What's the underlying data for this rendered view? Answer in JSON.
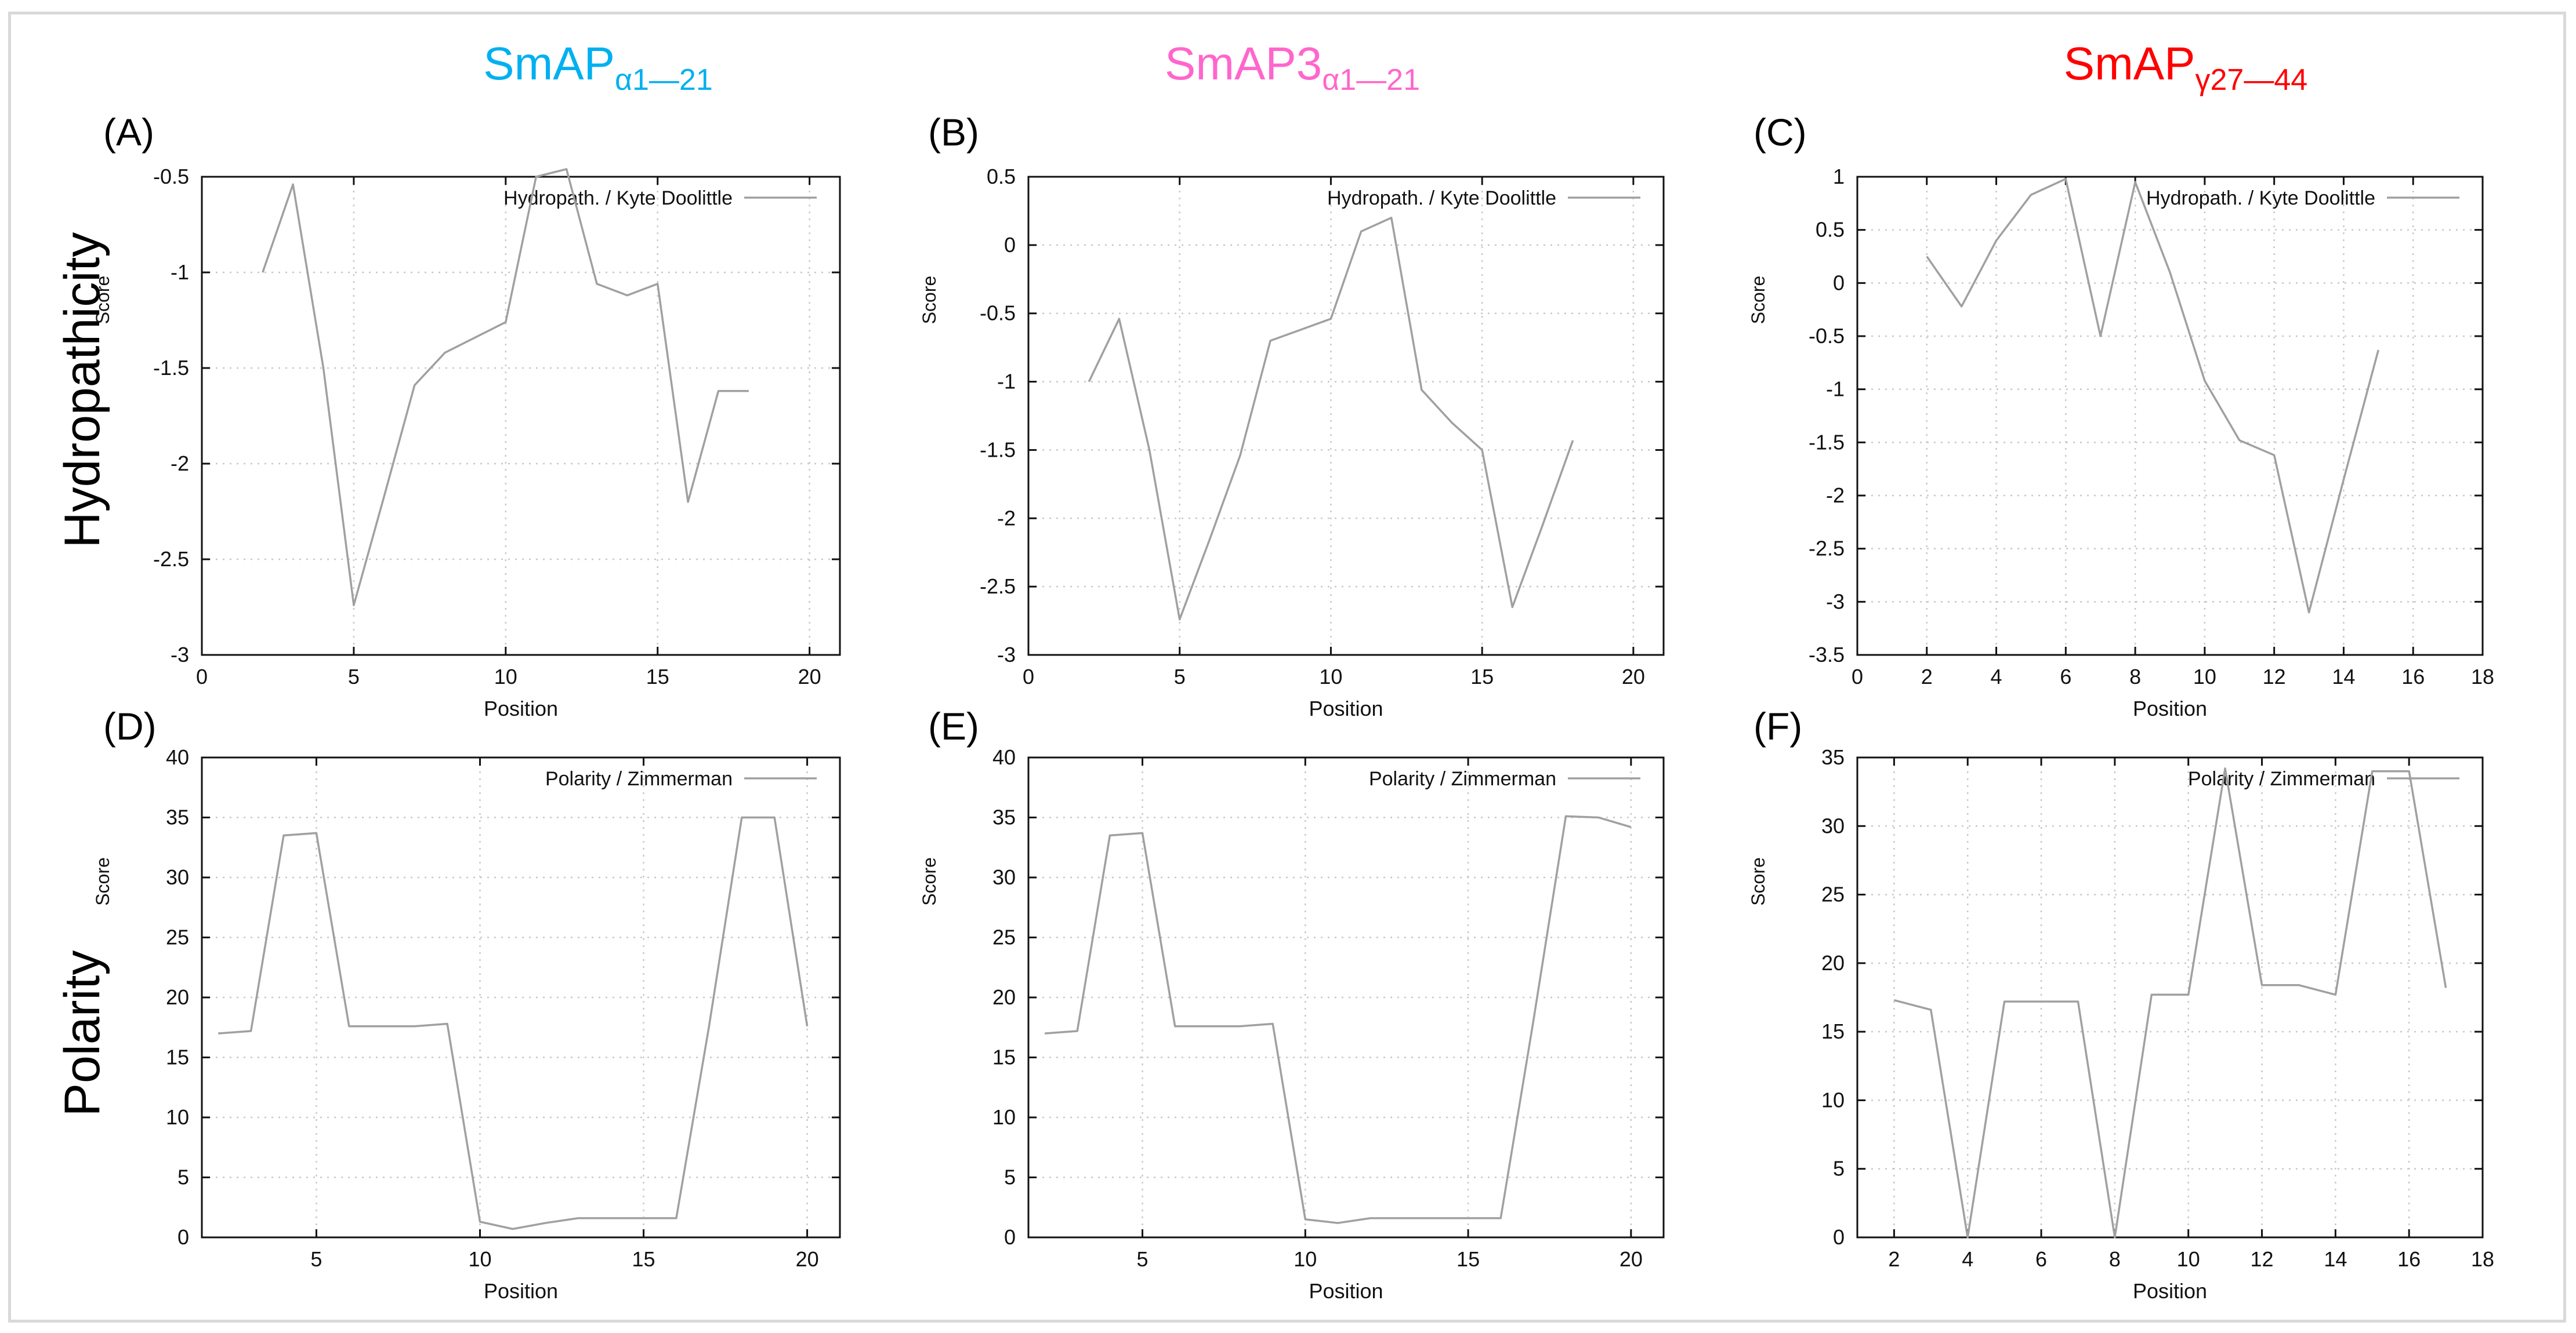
{
  "headers": {
    "col1": {
      "main": "SmAP",
      "sub": "α1—21",
      "color": "#00b0f0"
    },
    "col2": {
      "main": "SmAP3",
      "sub": "α1—21",
      "color": "#ff66cc"
    },
    "col3": {
      "main": "SmAP",
      "sub": "γ27—44",
      "color": "#ff0000"
    }
  },
  "row_labels": {
    "hydro": "Hydropathicity",
    "polar": "Polarity"
  },
  "panel_letters": [
    "(A)",
    "(B)",
    "(C)",
    "(D)",
    "(E)",
    "(F)"
  ],
  "chart_data": [
    {
      "type": "line",
      "letter": "(A)",
      "legend": "Hydropath. / Kyte  Doolittle",
      "xlabel": "Position",
      "ylabel": "Score",
      "xlim": [
        0,
        21
      ],
      "ylim": [
        -3,
        -0.5
      ],
      "xticks": [
        0,
        5,
        10,
        15,
        20
      ],
      "yticks": [
        -3,
        -2.5,
        -2,
        -1.5,
        -1,
        -0.5
      ],
      "x": [
        2,
        3,
        4,
        5,
        6,
        7,
        8,
        9,
        10,
        11,
        12,
        13,
        14,
        15,
        16,
        17,
        18
      ],
      "y": [
        -1.0,
        -0.54,
        -1.5,
        -2.74,
        -2.17,
        -1.59,
        -1.42,
        -1.34,
        -1.26,
        -0.5,
        -0.46,
        -1.06,
        -1.12,
        -1.06,
        -2.2,
        -1.62,
        -1.62
      ]
    },
    {
      "type": "line",
      "letter": "(B)",
      "legend": "Hydropath. / Kyte  Doolittle",
      "xlabel": "Position",
      "ylabel": "Score",
      "xlim": [
        0,
        21
      ],
      "ylim": [
        -3,
        0.5
      ],
      "xticks": [
        0,
        5,
        10,
        15,
        20
      ],
      "yticks": [
        -3,
        -2.5,
        -2,
        -1.5,
        -1,
        -0.5,
        0,
        0.5
      ],
      "x": [
        2,
        3,
        4,
        5,
        6,
        7,
        8,
        9,
        10,
        11,
        12,
        13,
        14,
        15,
        16,
        17,
        18
      ],
      "y": [
        -1.0,
        -0.54,
        -1.5,
        -2.74,
        -2.15,
        -1.54,
        -0.7,
        -0.62,
        -0.54,
        0.1,
        0.2,
        -1.06,
        -1.3,
        -1.5,
        -2.65,
        -2.05,
        -1.43
      ]
    },
    {
      "type": "line",
      "letter": "(C)",
      "legend": "Hydropath. / Kyte  Doolittle",
      "xlabel": "Position",
      "ylabel": "Score",
      "xlim": [
        0,
        18
      ],
      "ylim": [
        -3.5,
        1
      ],
      "xticks": [
        0,
        2,
        4,
        6,
        8,
        10,
        12,
        14,
        16,
        18
      ],
      "yticks": [
        -3.5,
        -3,
        -2.5,
        -2,
        -1.5,
        -1,
        -0.5,
        0,
        0.5,
        1
      ],
      "x": [
        2,
        3,
        4,
        5,
        6,
        7,
        8,
        9,
        10,
        11,
        12,
        13,
        14,
        15
      ],
      "y": [
        0.25,
        -0.22,
        0.4,
        0.83,
        0.98,
        -0.5,
        0.95,
        0.1,
        -0.92,
        -1.48,
        -1.62,
        -3.1,
        -1.85,
        -0.63
      ]
    },
    {
      "type": "line",
      "letter": "(D)",
      "legend": "Polarity / Zimmerman",
      "xlabel": "Position",
      "ylabel": "Score",
      "xlim": [
        1.5,
        21
      ],
      "ylim": [
        0,
        40
      ],
      "xticks": [
        5,
        10,
        15,
        20
      ],
      "yticks": [
        0,
        5,
        10,
        15,
        20,
        25,
        30,
        35,
        40
      ],
      "x": [
        2,
        3,
        4,
        5,
        6,
        7,
        8,
        9,
        10,
        11,
        12,
        13,
        14,
        15,
        16,
        17,
        18,
        19,
        20
      ],
      "y": [
        17.0,
        17.2,
        33.5,
        33.7,
        17.6,
        17.6,
        17.6,
        17.8,
        1.3,
        0.7,
        1.2,
        1.6,
        1.6,
        1.6,
        1.6,
        17.6,
        35.0,
        35.0,
        17.6
      ]
    },
    {
      "type": "line",
      "letter": "(E)",
      "legend": "Polarity / Zimmerman",
      "xlabel": "Position",
      "ylabel": "Score",
      "xlim": [
        1.5,
        21
      ],
      "ylim": [
        0,
        40
      ],
      "xticks": [
        5,
        10,
        15,
        20
      ],
      "yticks": [
        0,
        5,
        10,
        15,
        20,
        25,
        30,
        35,
        40
      ],
      "x": [
        2,
        3,
        4,
        5,
        6,
        7,
        8,
        9,
        10,
        11,
        12,
        13,
        14,
        15,
        16,
        17,
        18,
        19,
        20
      ],
      "y": [
        17.0,
        17.2,
        33.5,
        33.7,
        17.6,
        17.6,
        17.6,
        17.8,
        1.5,
        1.2,
        1.6,
        1.6,
        1.6,
        1.6,
        1.6,
        18.0,
        35.1,
        35.0,
        34.2
      ]
    },
    {
      "type": "line",
      "letter": "(F)",
      "legend": "Polarity / Zimmerman",
      "xlabel": "Position",
      "ylabel": "Score",
      "xlim": [
        1,
        18
      ],
      "ylim": [
        0,
        35
      ],
      "xticks": [
        2,
        4,
        6,
        8,
        10,
        12,
        14,
        16,
        18
      ],
      "yticks": [
        0,
        5,
        10,
        15,
        20,
        25,
        30,
        35
      ],
      "x": [
        2,
        3,
        4,
        5,
        6,
        7,
        8,
        9,
        10,
        11,
        12,
        13,
        14,
        15,
        16,
        17
      ],
      "y": [
        17.3,
        16.6,
        0.0,
        17.2,
        17.2,
        17.2,
        0.0,
        17.7,
        17.7,
        34.2,
        18.4,
        18.4,
        17.7,
        34.0,
        34.0,
        18.2
      ]
    }
  ]
}
